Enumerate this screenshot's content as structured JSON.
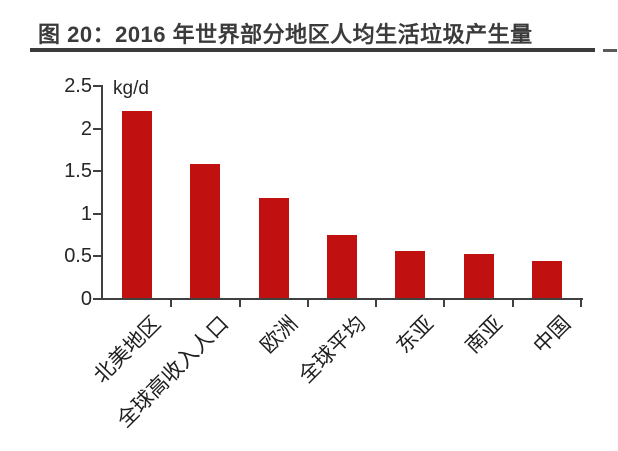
{
  "figure": {
    "title": "图 20：2016 年世界部分地区人均生活垃圾产生量"
  },
  "chart_data": {
    "type": "bar",
    "title": "图 20：2016 年世界部分地区人均生活垃圾产生量",
    "categories": [
      "北美地区",
      "全球高收入人口",
      "欧洲",
      "全球平均",
      "东亚",
      "南亚",
      "中国"
    ],
    "values": [
      2.2,
      1.57,
      1.17,
      0.74,
      0.55,
      0.52,
      0.44
    ],
    "xlabel": "",
    "ylabel": "kg/d",
    "ylim": [
      0,
      2.5
    ],
    "yticks": [
      0,
      0.5,
      1,
      1.5,
      2,
      2.5
    ],
    "grid": false,
    "legend": "none",
    "bar_color": "#c01010"
  },
  "colors": {
    "bar": "#c01010",
    "axis": "#404040",
    "text": "#262626",
    "title": "#3b3b3b",
    "background": "#ffffff"
  }
}
